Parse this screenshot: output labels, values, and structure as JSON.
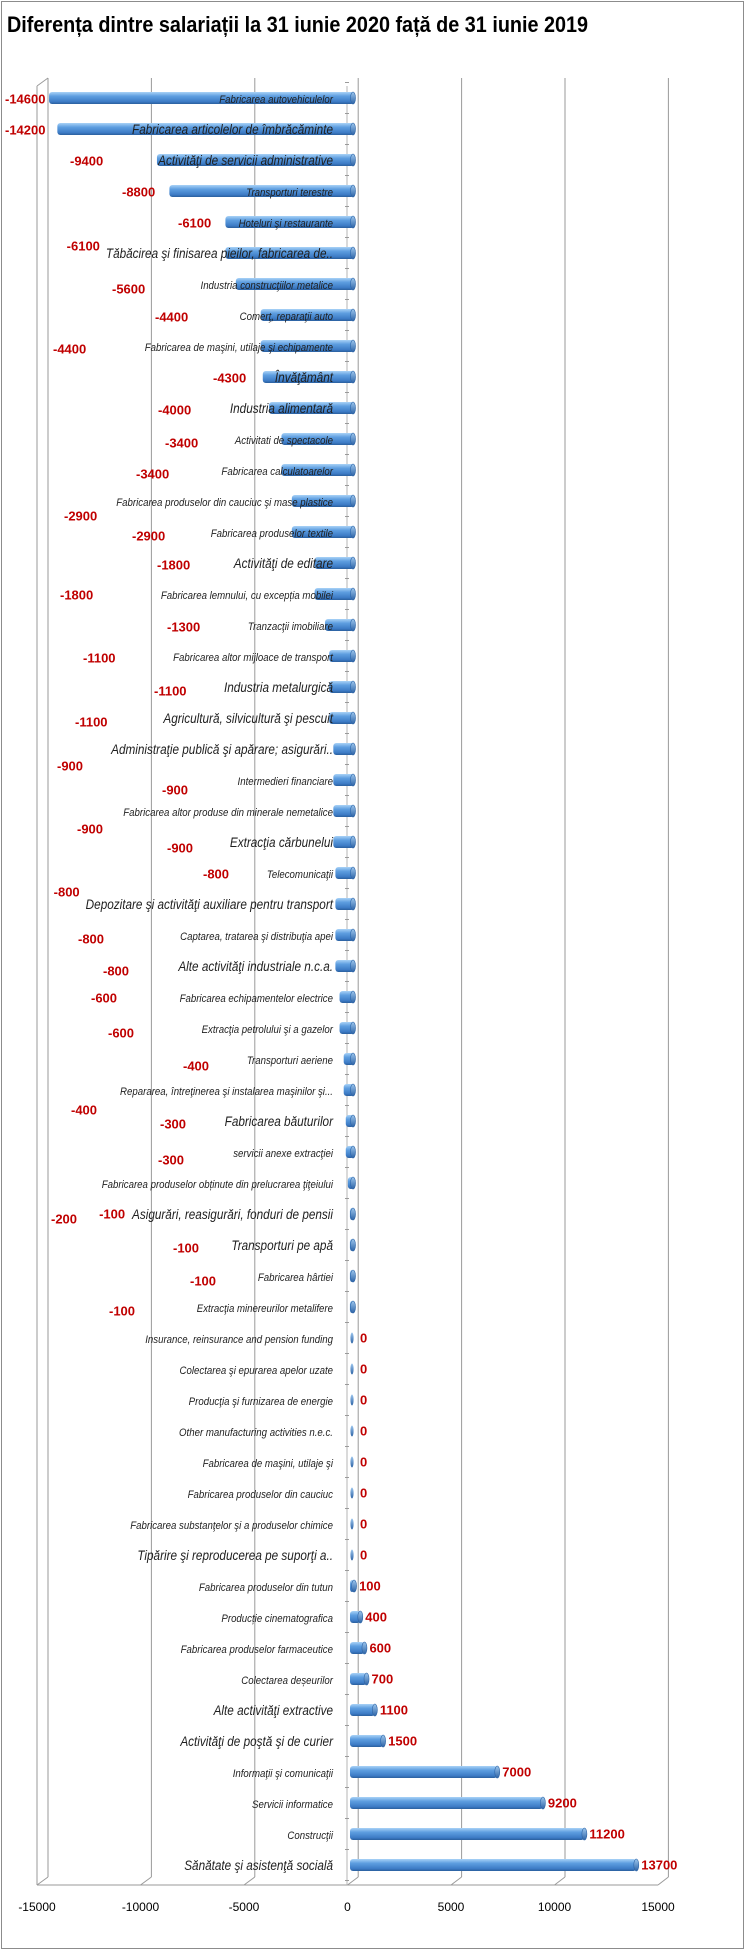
{
  "title": "Diferența dintre salariații la 31 iunie 2020 față de 31 iunie 2019",
  "chart_data": {
    "type": "bar",
    "orientation": "horizontal",
    "title": "Diferența dintre salariații la 31 iunie 2020 față de 31 iunie 2019",
    "xlabel": "",
    "ylabel": "",
    "xlim": [
      -15000,
      15000
    ],
    "x_ticks": [
      "-15000",
      "-10000",
      "-5000",
      "0",
      "5000",
      "10000",
      "15000"
    ],
    "grid": "vertical",
    "bar_color": "#4f8fd6",
    "label_color": "#c00000",
    "categories": [
      "Fabricarea autovehiculelor",
      "Fabricarea articolelor de îmbrăcăminte",
      "Activităţi de servicii administrative",
      "Transporturi terestre",
      "Hoteluri şi restaurante",
      "Tăbăcirea şi finisarea pieilor, fabricarea de..",
      "Industria construcţiilor metalice",
      "Comerţ, reparaţii auto",
      "Fabricarea de maşini, utilaje şi echipamente",
      "Învăţământ",
      "Industria alimentară",
      "Activitati de spectacole",
      "Fabricarea calculatoarelor",
      "Fabricarea produselor din cauciuc şi mase plastice",
      "Fabricarea produselor textile",
      "Activităţi de editare",
      "Fabricarea lemnului, cu excepția mobilei",
      "Tranzacţii imobiliare",
      "Fabricarea altor mijloace de transport",
      "Industria metalurgică",
      "Agricultură, silvicultură şi pescuit",
      "Administraţie publică şi apărare; asigurări..",
      "Intermedieri financiare",
      "Fabricarea altor produse din minerale nemetalice",
      "Extracţia cărbunelui",
      "Telecomunicaţii",
      "Depozitare şi activităţi auxiliare pentru transport",
      "Captarea, tratarea şi distribuţia apei",
      "Alte activităţi industriale n.c.a.",
      "Fabricarea echipamentelor electrice",
      "Extracţia petrolului şi a gazelor",
      "Transporturi aeriene",
      "Repararea, întreţinerea şi instalarea maşinilor şi...",
      "Fabricarea băuturilor",
      "servicii anexe extracţiei",
      "Fabricarea produselor obținute din prelucrarea ţiţeiului",
      "Asigurări, reasigurări, fonduri de pensii",
      "Transporturi pe apă",
      "Fabricarea hârtiei",
      "Extracţia minereurilor metalifere",
      "Insurance, reinsurance and pension funding",
      "Colectarea şi epurarea apelor uzate",
      "Producţia şi furnizarea de energie",
      "Other manufacturing activities n.e.c.",
      "Fabricarea de maşini, utilaje şi",
      "Fabricarea produselor din cauciuc",
      "Fabricarea substanţelor şi a produselor chimice",
      "Tipărire şi reproducerea pe suporţi a..",
      "Fabricarea produselor din tutun",
      "Producție cinematografica",
      "Fabricarea produselor farmaceutice",
      "Colectarea deșeurilor",
      "Alte activităţi extractive",
      "Activităţi de poştă şi de curier",
      "Informaţii şi comunicaţii",
      "Servicii informatice",
      "Construcţii",
      "Sănătate şi asistenţă socială"
    ],
    "values": [
      -14600,
      -14200,
      -9400,
      -8800,
      -6100,
      -6100,
      -5600,
      -4400,
      -4400,
      -4300,
      -4000,
      -3400,
      -3400,
      -2900,
      -2900,
      -1800,
      -1800,
      -1300,
      -1100,
      -1100,
      -1100,
      -900,
      -900,
      -900,
      -900,
      -800,
      -800,
      -800,
      -800,
      -600,
      -600,
      -400,
      -400,
      -300,
      -300,
      -200,
      -100,
      -100,
      -100,
      -100,
      0,
      0,
      0,
      0,
      0,
      0,
      0,
      0,
      100,
      400,
      600,
      700,
      1100,
      1500,
      7000,
      9200,
      11200,
      13700
    ]
  }
}
